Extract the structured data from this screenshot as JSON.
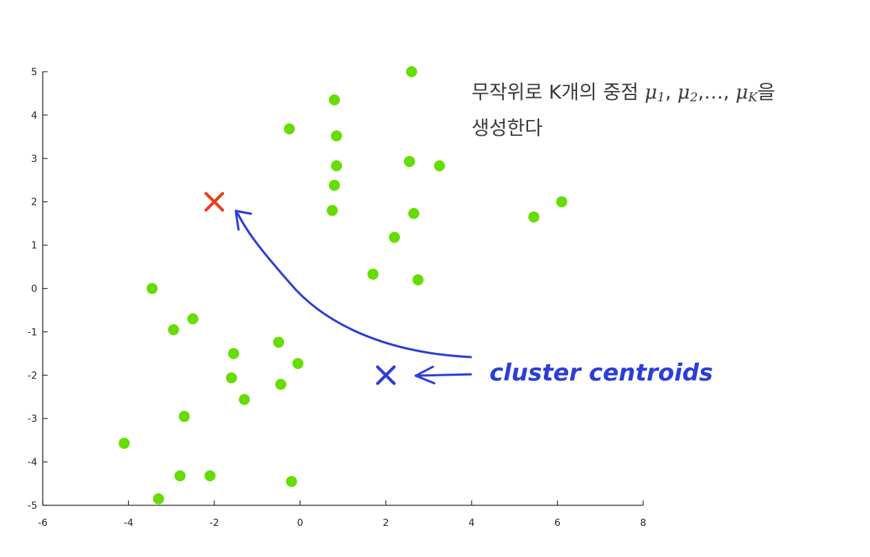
{
  "caption": {
    "line1_text": "무작위로 K개의 중점 ",
    "mu": "μ",
    "sub1": "1",
    "sub2": "2",
    "ellipsis": ",…, ",
    "subK": "K",
    "sep": ", ",
    "line1_tail": "을",
    "line2": "생성한다"
  },
  "chart_data": {
    "type": "scatter",
    "title": "",
    "xlabel": "",
    "ylabel": "",
    "xlim": [
      -6,
      8
    ],
    "ylim": [
      -5,
      5
    ],
    "xticks": [
      "-6",
      "-4",
      "-2",
      "0",
      "2",
      "4",
      "6",
      "8"
    ],
    "yticks": [
      "5",
      "4",
      "3",
      "2",
      "1",
      "0",
      "-1",
      "-2",
      "-3",
      "-4",
      "-5"
    ],
    "grid": false,
    "series": [
      {
        "color": "#66dd00",
        "points": [
          [
            2.6,
            5.0
          ],
          [
            0.8,
            4.35
          ],
          [
            -0.25,
            3.68
          ],
          [
            0.85,
            3.52
          ],
          [
            2.55,
            2.93
          ],
          [
            3.25,
            2.83
          ],
          [
            0.85,
            2.83
          ],
          [
            0.8,
            2.38
          ],
          [
            0.75,
            1.8
          ],
          [
            2.65,
            1.73
          ],
          [
            5.45,
            1.65
          ],
          [
            6.1,
            2.0
          ],
          [
            2.2,
            1.18
          ],
          [
            1.7,
            0.33
          ],
          [
            2.75,
            0.2
          ],
          [
            -3.45,
            0.0
          ],
          [
            -2.5,
            -0.7
          ],
          [
            -2.95,
            -0.95
          ],
          [
            -0.5,
            -1.24
          ],
          [
            -0.05,
            -1.73
          ],
          [
            -1.55,
            -1.5
          ],
          [
            -1.6,
            -2.06
          ],
          [
            -0.45,
            -2.21
          ],
          [
            -1.3,
            -2.56
          ],
          [
            -2.7,
            -2.95
          ],
          [
            -4.1,
            -3.57
          ],
          [
            -2.8,
            -4.32
          ],
          [
            -2.1,
            -4.32
          ],
          [
            -0.2,
            -4.45
          ],
          [
            -3.3,
            -4.85
          ]
        ]
      }
    ],
    "centroids": [
      {
        "x": -2,
        "y": 2,
        "color": "#e8401c"
      },
      {
        "x": 2,
        "y": -2,
        "color": "#2c3ed8"
      }
    ],
    "annotations": [
      {
        "text": "cluster centroids",
        "color": "#2c3ed8"
      }
    ]
  }
}
